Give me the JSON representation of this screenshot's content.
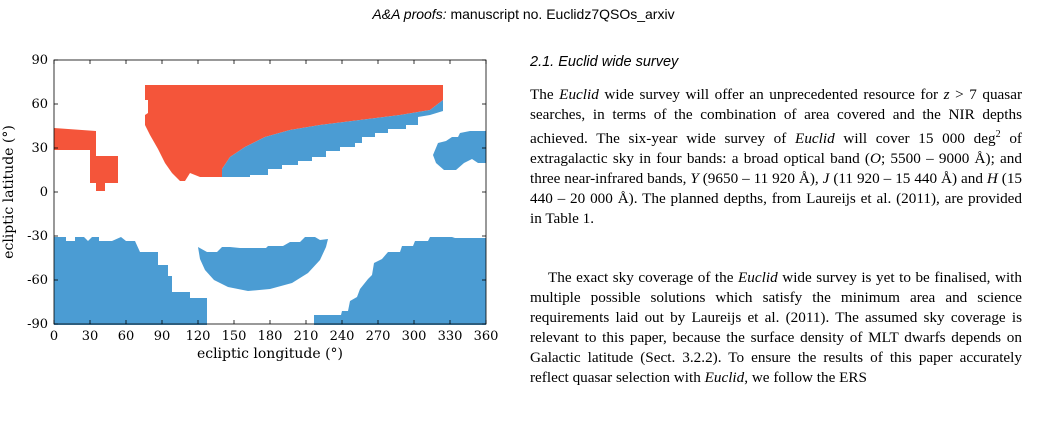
{
  "header": {
    "journal": "A&A proofs:",
    "manuscript": "manuscript no. Euclidz7QSOs_arxiv"
  },
  "figure": {
    "xlabel": "ecliptic longitude (°)",
    "ylabel": "ecliptic latitude (°)",
    "xticks": [
      "0",
      "30",
      "60",
      "90",
      "120",
      "150",
      "180",
      "210",
      "240",
      "270",
      "300",
      "330",
      "360"
    ],
    "yticks": [
      "90",
      "60",
      "30",
      "0",
      "-30",
      "-60",
      "-90"
    ],
    "colors": {
      "galactic_mask": "#f4553a",
      "survey": "#4b9cd3"
    }
  },
  "section": {
    "title": "2.1. Euclid wide survey",
    "p1": [
      "The ",
      {
        "i": "Euclid"
      },
      " wide survey will offer an unprecedented resource for ",
      {
        "i": "z"
      },
      " > 7 quasar searches, in terms of the combination of area covered and the NIR depths achieved. The six-year wide survey of ",
      {
        "i": "Euclid"
      },
      " will cover 15 000 deg",
      {
        "sup": "2"
      },
      " of extragalactic sky in four bands: a broad optical band (",
      {
        "i": "O"
      },
      "; 5500 – 9000 Å); and three near-infrared bands, ",
      {
        "i": "Y"
      },
      " (9650 – 11 920 Å), ",
      {
        "i": "J"
      },
      " (11 920 – 15 440 Å) and ",
      {
        "i": "H"
      },
      " (15 440 – 20 000 Å). The planned depths, from Laureijs et al. (2011), are provided in Table 1."
    ],
    "p2": [
      "The exact sky coverage of the ",
      {
        "i": "Euclid"
      },
      " wide survey is yet to be finalised, with multiple possible solutions which satisfy the minimum area and science requirements laid out by Laureijs et al. (2011). The assumed sky coverage is relevant to this paper, because the surface density of MLT dwarfs depends on Galactic latitude (Sect. 3.2.2). To ensure the results of this paper accurately reflect quasar selection with ",
      {
        "i": "Euclid"
      },
      ", we follow the ERS"
    ]
  }
}
